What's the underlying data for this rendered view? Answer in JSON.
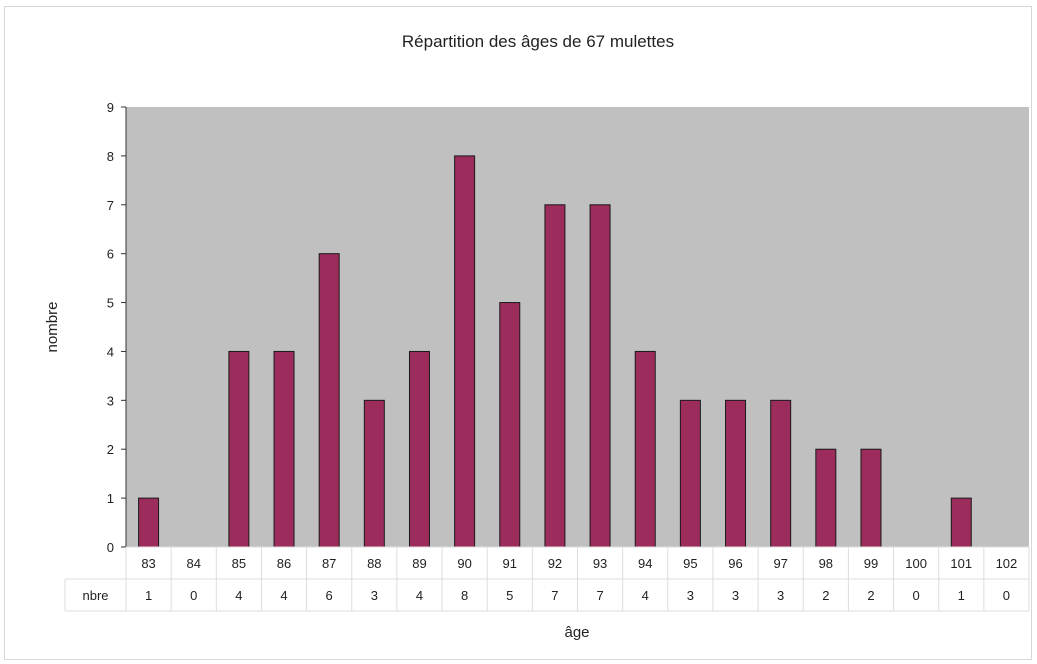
{
  "chart_data": {
    "type": "bar",
    "title": "Répartition des âges de 67 mulettes",
    "xlabel": "âge",
    "ylabel": "nombre",
    "ylim": [
      0,
      9
    ],
    "yticks": [
      "0",
      "1",
      "2",
      "3",
      "4",
      "5",
      "6",
      "7",
      "8",
      "9"
    ],
    "categories": [
      "83",
      "84",
      "85",
      "86",
      "87",
      "88",
      "89",
      "90",
      "91",
      "92",
      "93",
      "94",
      "95",
      "96",
      "97",
      "98",
      "99",
      "100",
      "101",
      "102"
    ],
    "values": [
      1,
      0,
      4,
      4,
      6,
      3,
      4,
      8,
      5,
      7,
      7,
      4,
      3,
      3,
      3,
      2,
      2,
      0,
      1,
      0
    ],
    "table_row_label": "nbre",
    "grid": false,
    "colors": {
      "bar": "#9b2c5c",
      "bar_edge": "#1a1a1a",
      "plot_bg": "#c0c0c0"
    }
  }
}
